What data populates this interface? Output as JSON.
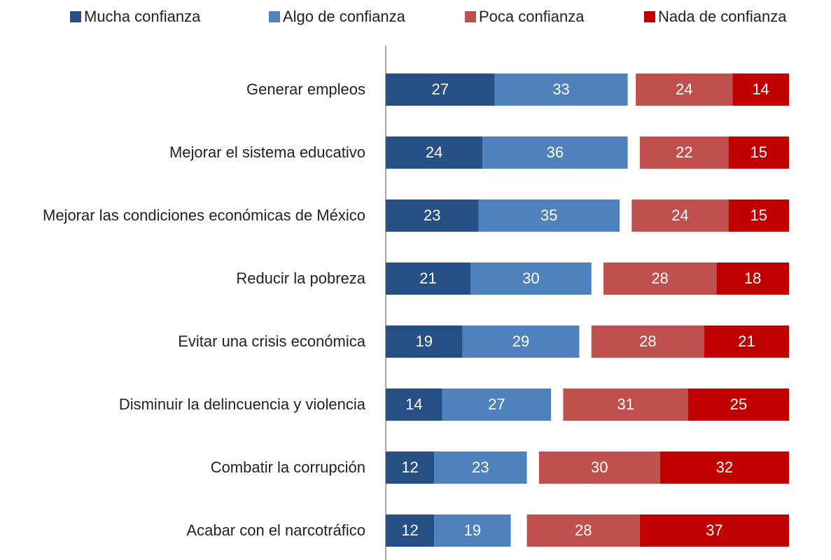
{
  "chart_data": {
    "type": "diverging_bar",
    "categories": [
      "Generar empleos",
      "Mejorar el sistema educativo",
      "Mejorar las condiciones económicas de México",
      "Reducir la pobreza",
      "Evitar una crisis económica",
      "Disminuir la delincuencia y violencia",
      "Combatir la corrupción",
      "Acabar con el narcotráfico"
    ],
    "series": [
      {
        "name": "Mucha confianza",
        "color": "#254f85",
        "values": [
          27,
          24,
          23,
          21,
          19,
          14,
          12,
          12
        ]
      },
      {
        "name": "Algo de confianza",
        "color": "#4f81bd",
        "values": [
          33,
          36,
          35,
          30,
          29,
          27,
          23,
          19
        ]
      },
      {
        "name": "Poca confianza",
        "color": "#c0504d",
        "values": [
          24,
          22,
          24,
          28,
          28,
          31,
          30,
          28
        ]
      },
      {
        "name": "Nada de confianza",
        "color": "#c00000",
        "values": [
          14,
          15,
          15,
          18,
          21,
          25,
          32,
          37
        ]
      }
    ],
    "xlim": [
      0,
      100
    ],
    "legend": "top"
  }
}
